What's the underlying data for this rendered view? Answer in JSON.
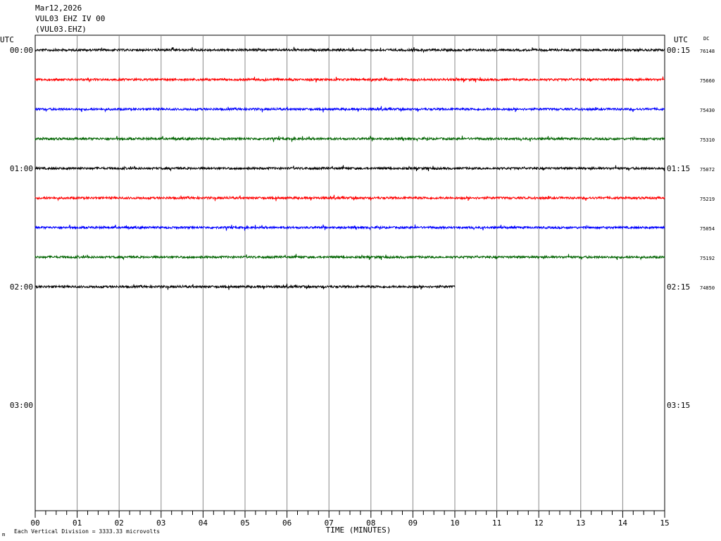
{
  "header": {
    "date": "Mar12,2026",
    "station": "VUL03 EHZ IV 00",
    "channel": "(VUL03.EHZ)"
  },
  "labels": {
    "utc_left": "UTC",
    "utc_right": "UTC",
    "dc": "DC",
    "xlabel": "TIME (MINUTES)",
    "footer_mark": "m",
    "footer_note": "Each Vertical Division = 3333.33 microvolts"
  },
  "chart_data": {
    "type": "line",
    "title": "",
    "xlabel": "TIME (MINUTES)",
    "ylabel": "",
    "xlim": [
      0,
      15
    ],
    "x_ticks": [
      "00",
      "01",
      "02",
      "03",
      "04",
      "05",
      "06",
      "07",
      "08",
      "09",
      "10",
      "11",
      "12",
      "13",
      "14",
      "15"
    ],
    "minor_tick_step_minutes": 0.25,
    "grid": "vertical lines every minute",
    "line_interval_minutes": 15,
    "left_time_labels": [
      {
        "line_index": 0,
        "text": "00:00"
      },
      {
        "line_index": 4,
        "text": "01:00"
      },
      {
        "line_index": 8,
        "text": "02:00"
      },
      {
        "line_index": 12,
        "text": "03:00"
      }
    ],
    "right_time_labels": [
      {
        "line_index": 0,
        "text": "00:15"
      },
      {
        "line_index": 4,
        "text": "01:15"
      },
      {
        "line_index": 8,
        "text": "02:15"
      },
      {
        "line_index": 12,
        "text": "03:15"
      }
    ],
    "total_line_slots": 16,
    "series": [
      {
        "line_index": 0,
        "color": "#000000",
        "dc": "76148",
        "end_minute": 15
      },
      {
        "line_index": 1,
        "color": "#ff0000",
        "dc": "75660",
        "end_minute": 15
      },
      {
        "line_index": 2,
        "color": "#0000ff",
        "dc": "75430",
        "end_minute": 15
      },
      {
        "line_index": 3,
        "color": "#006400",
        "dc": "75310",
        "end_minute": 15
      },
      {
        "line_index": 4,
        "color": "#000000",
        "dc": "75072",
        "end_minute": 15
      },
      {
        "line_index": 5,
        "color": "#ff0000",
        "dc": "75219",
        "end_minute": 15
      },
      {
        "line_index": 6,
        "color": "#0000ff",
        "dc": "75054",
        "end_minute": 15
      },
      {
        "line_index": 7,
        "color": "#006400",
        "dc": "75192",
        "end_minute": 15
      },
      {
        "line_index": 8,
        "color": "#000000",
        "dc": "74850",
        "end_minute": 10
      }
    ],
    "vertical_division_microvolts": 3333.33
  }
}
